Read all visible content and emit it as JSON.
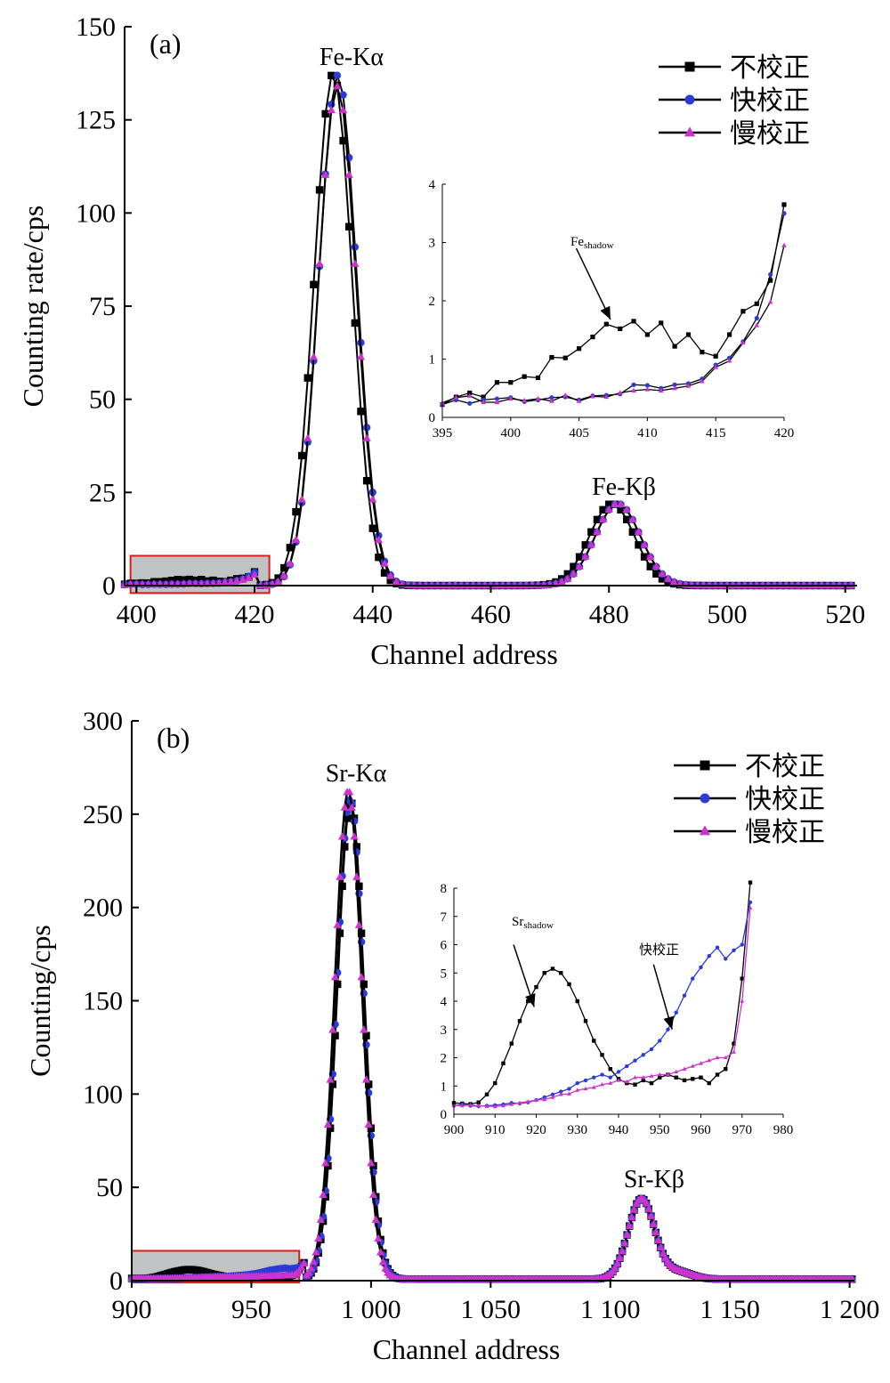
{
  "colors": {
    "uncorrected": "#000000",
    "fast": "#2b3bd6",
    "slow": "#cc33cc",
    "zoom_box_stroke": "#e0191b",
    "zoom_box_fill": "#bfc3c3"
  },
  "panels": [
    {
      "id": "a",
      "panel_label": "(a)",
      "peak_labels": {
        "ka": "Fe-Kα",
        "kb": "Fe-Kβ"
      },
      "legend": [
        "不校正",
        "快校正",
        "慢校正"
      ],
      "chart_data": {
        "type": "line",
        "xlabel": "Channel address",
        "ylabel": "Counting rate/cps",
        "xlim": [
          398,
          522
        ],
        "ylim": [
          0,
          150
        ],
        "xticks": [
          "400",
          "420",
          "440",
          "460",
          "480",
          "500",
          "520"
        ],
        "xtick_values": [
          400,
          420,
          440,
          460,
          480,
          500,
          520
        ],
        "yticks": [
          "0",
          "25",
          "50",
          "75",
          "100",
          "125",
          "150"
        ],
        "ytick_values": [
          0,
          25,
          50,
          75,
          100,
          125,
          150
        ],
        "zoom_box": {
          "x": [
            399,
            422.5
          ],
          "y": [
            -2,
            8
          ]
        },
        "ka_peak": {
          "uncorrected_center": 433.3,
          "fast_center": 434.1,
          "slow_center": 434.0,
          "uncorrected_height": 137.5,
          "fast_height": 137,
          "slow_height": 134,
          "sigma": 3.2
        },
        "kb_peak": {
          "uncorrected_center": 480.5,
          "fast_center": 481.5,
          "slow_center": 481.5,
          "height": 22,
          "sigma": 3.8
        },
        "series": [
          {
            "name": "不校正"
          },
          {
            "name": "快校正"
          },
          {
            "name": "慢校正"
          }
        ],
        "inset": {
          "xlim": [
            395,
            420
          ],
          "ylim": [
            0,
            4
          ],
          "xticks": [
            "395",
            "400",
            "405",
            "410",
            "415",
            "420"
          ],
          "xtick_values": [
            395,
            400,
            405,
            410,
            415,
            420
          ],
          "yticks": [
            "0",
            "1",
            "2",
            "3",
            "4"
          ],
          "ytick_values": [
            0,
            1,
            2,
            3,
            4
          ],
          "annotation": {
            "base": "Fe",
            "subscript": "shadow"
          },
          "arrow": {
            "from": [
              404.8,
              2.9
            ],
            "to": [
              407.3,
              1.68
            ]
          },
          "x": [
            395,
            396,
            397,
            398,
            399,
            400,
            401,
            402,
            403,
            404,
            405,
            406,
            407,
            408,
            409,
            410,
            411,
            412,
            413,
            414,
            415,
            416,
            417,
            418,
            419,
            420
          ],
          "series": [
            {
              "name": "不校正",
              "values": [
                0.22,
                0.35,
                0.42,
                0.35,
                0.6,
                0.6,
                0.7,
                0.68,
                1.03,
                1.02,
                1.18,
                1.38,
                1.6,
                1.52,
                1.65,
                1.42,
                1.62,
                1.22,
                1.42,
                1.12,
                1.05,
                1.42,
                1.82,
                1.95,
                2.35,
                3.65
              ]
            },
            {
              "name": "快校正",
              "values": [
                0.22,
                0.3,
                0.24,
                0.3,
                0.32,
                0.34,
                0.27,
                0.3,
                0.34,
                0.35,
                0.3,
                0.37,
                0.38,
                0.4,
                0.56,
                0.55,
                0.5,
                0.56,
                0.58,
                0.66,
                0.9,
                1.02,
                1.3,
                1.7,
                2.45,
                3.5
              ]
            },
            {
              "name": "慢校正",
              "values": [
                0.25,
                0.34,
                0.37,
                0.26,
                0.26,
                0.32,
                0.29,
                0.32,
                0.28,
                0.38,
                0.28,
                0.36,
                0.35,
                0.42,
                0.46,
                0.48,
                0.46,
                0.5,
                0.54,
                0.62,
                0.86,
                0.97,
                1.28,
                1.58,
                1.98,
                2.95
              ]
            }
          ]
        }
      }
    },
    {
      "id": "b",
      "panel_label": "(b)",
      "peak_labels": {
        "ka": "Sr-Kα",
        "kb": "Sr-Kβ"
      },
      "legend": [
        "不校正",
        "快校正",
        "慢校正"
      ],
      "chart_data": {
        "type": "line",
        "xlabel": "Channel address",
        "ylabel": "Counting/cps",
        "xlim": [
          900,
          1202
        ],
        "ylim": [
          0,
          300
        ],
        "xticks": [
          "900",
          "950",
          "1 000",
          "1 050",
          "1 100",
          "1 150",
          "1 200"
        ],
        "xtick_values": [
          900,
          950,
          1000,
          1050,
          1100,
          1150,
          1200
        ],
        "yticks": [
          "0",
          "50",
          "100",
          "150",
          "200",
          "250",
          "300"
        ],
        "ytick_values": [
          0,
          50,
          100,
          150,
          200,
          250,
          300
        ],
        "zoom_box": {
          "x": [
            900,
            970
          ],
          "y": [
            -1,
            16
          ]
        },
        "ka_peak": {
          "uncorrected_center": 991.5,
          "fast_center": 991.3,
          "slow_center": 990.5,
          "uncorrected_height": 256,
          "fast_height": 257,
          "slow_height": 262,
          "sigma": 5.6
        },
        "kb_peak": {
          "uncorrected_center": 1113,
          "fast_center": 1113,
          "slow_center": 1113,
          "height": 43,
          "sigma": 5.5
        },
        "series": [
          {
            "name": "不校正"
          },
          {
            "name": "快校正"
          },
          {
            "name": "慢校正"
          }
        ],
        "inset": {
          "xlim": [
            900,
            980
          ],
          "ylim": [
            0,
            8
          ],
          "xticks": [
            "900",
            "910",
            "920",
            "930",
            "940",
            "950",
            "960",
            "970",
            "980"
          ],
          "xtick_values": [
            900,
            910,
            920,
            930,
            940,
            950,
            960,
            970,
            980
          ],
          "yticks": [
            "0",
            "1",
            "2",
            "3",
            "4",
            "5",
            "6",
            "7",
            "8"
          ],
          "ytick_values": [
            0,
            1,
            2,
            3,
            4,
            5,
            6,
            7,
            8
          ],
          "annotation": {
            "base": "Sr",
            "subscript": "shadow"
          },
          "annotation2": "快校正",
          "arrow": {
            "from": [
              914.5,
              6.0
            ],
            "to": [
              919.5,
              3.8
            ]
          },
          "arrow2": {
            "from": [
              948.5,
              5.3
            ],
            "to": [
              953.0,
              3.0
            ]
          },
          "x": [
            900,
            902,
            904,
            906,
            908,
            910,
            912,
            914,
            916,
            918,
            920,
            922,
            924,
            926,
            928,
            930,
            932,
            934,
            936,
            938,
            940,
            942,
            944,
            946,
            948,
            950,
            952,
            954,
            956,
            958,
            960,
            962,
            964,
            966,
            968,
            970,
            972
          ],
          "series": [
            {
              "name": "不校正",
              "values": [
                0.4,
                0.38,
                0.36,
                0.42,
                0.7,
                1.1,
                1.8,
                2.5,
                3.3,
                4.0,
                4.5,
                5.0,
                5.15,
                5.0,
                4.6,
                4.0,
                3.3,
                2.6,
                2.1,
                1.6,
                1.25,
                1.1,
                1.05,
                1.2,
                1.1,
                1.3,
                1.4,
                1.3,
                1.2,
                1.25,
                1.3,
                1.1,
                1.4,
                1.6,
                2.5,
                4.8,
                8.2
              ]
            },
            {
              "name": "快校正",
              "values": [
                0.3,
                0.35,
                0.3,
                0.28,
                0.3,
                0.32,
                0.35,
                0.4,
                0.38,
                0.42,
                0.5,
                0.6,
                0.7,
                0.8,
                0.9,
                1.1,
                1.2,
                1.3,
                1.4,
                1.3,
                1.5,
                1.7,
                1.9,
                2.1,
                2.3,
                2.6,
                3.0,
                3.6,
                4.2,
                4.8,
                5.2,
                5.6,
                5.9,
                5.5,
                5.8,
                6.0,
                7.5
              ]
            },
            {
              "name": "慢校正",
              "values": [
                0.32,
                0.3,
                0.33,
                0.3,
                0.28,
                0.27,
                0.3,
                0.35,
                0.4,
                0.45,
                0.5,
                0.52,
                0.6,
                0.7,
                0.72,
                0.85,
                0.9,
                0.95,
                1.05,
                1.1,
                1.2,
                1.15,
                1.3,
                1.3,
                1.35,
                1.4,
                1.4,
                1.5,
                1.6,
                1.7,
                1.8,
                1.9,
                2.0,
                2.0,
                2.2,
                4.0,
                7.3
              ]
            }
          ]
        }
      }
    }
  ]
}
